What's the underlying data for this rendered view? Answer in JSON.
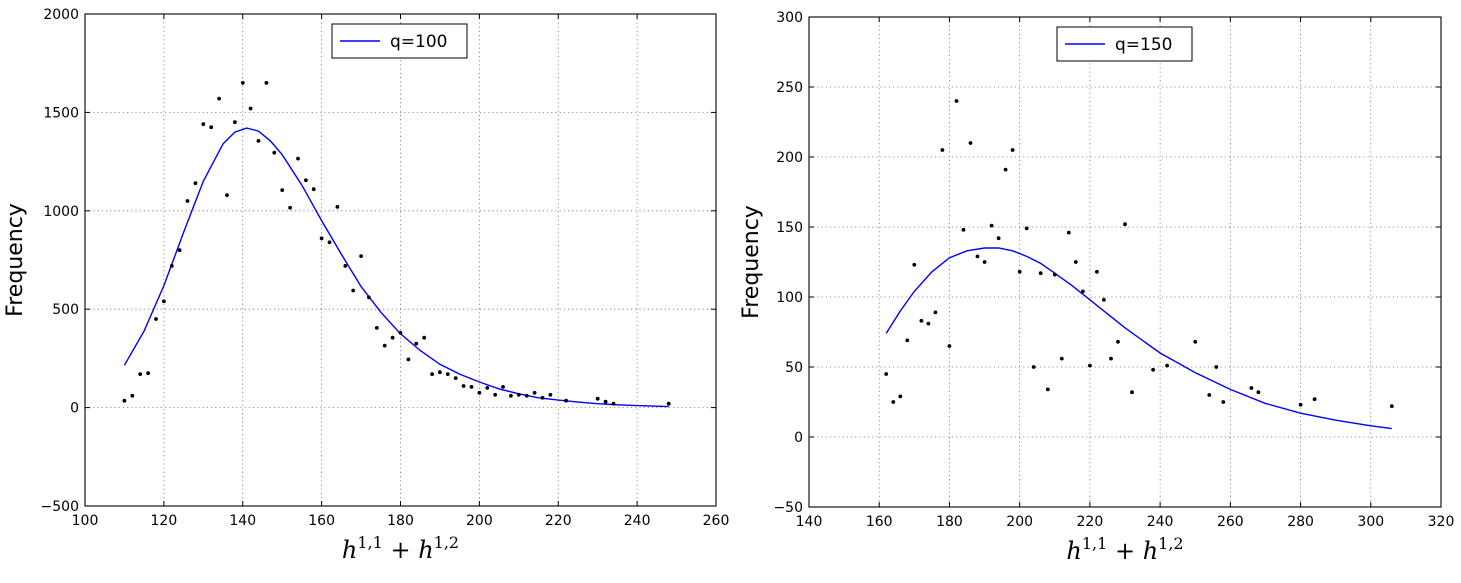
{
  "chart_data": [
    {
      "type": "scatter",
      "xlabel": "h^{1,1} + h^{1,2}",
      "ylabel": "Frequency",
      "xlim": [
        100,
        260
      ],
      "ylim": [
        -500,
        2000
      ],
      "xticks": [
        100,
        120,
        140,
        160,
        180,
        200,
        220,
        240,
        260
      ],
      "yticks": [
        -500,
        0,
        500,
        1000,
        1500,
        2000
      ],
      "grid": true,
      "legend_position": "top-center",
      "line_color": "#0000ff",
      "point_color": "#000000",
      "series": [
        {
          "name": "q=100",
          "kind": "line",
          "x": [
            110,
            115,
            120,
            125,
            130,
            135,
            138,
            141,
            144,
            147,
            150,
            155,
            160,
            165,
            170,
            175,
            180,
            185,
            190,
            195,
            200,
            205,
            210,
            215,
            220,
            225,
            230,
            235,
            240,
            248
          ],
          "y": [
            215,
            390,
            620,
            890,
            1150,
            1340,
            1400,
            1420,
            1405,
            1355,
            1285,
            1130,
            950,
            780,
            615,
            485,
            375,
            290,
            220,
            170,
            130,
            95,
            70,
            50,
            38,
            28,
            20,
            14,
            10,
            5
          ]
        },
        {
          "name": "",
          "kind": "points",
          "x": [
            110,
            112,
            114,
            116,
            118,
            120,
            122,
            124,
            126,
            128,
            130,
            132,
            134,
            136,
            138,
            140,
            142,
            144,
            146,
            148,
            150,
            152,
            154,
            156,
            158,
            160,
            162,
            164,
            166,
            168,
            170,
            172,
            174,
            176,
            178,
            180,
            182,
            184,
            186,
            188,
            190,
            192,
            194,
            196,
            198,
            200,
            202,
            204,
            206,
            208,
            210,
            212,
            214,
            216,
            218,
            222,
            230,
            232,
            234,
            248
          ],
          "y": [
            35,
            60,
            170,
            175,
            450,
            540,
            720,
            800,
            1050,
            1140,
            1440,
            1425,
            1570,
            1080,
            1450,
            1650,
            1520,
            1355,
            1650,
            1295,
            1105,
            1015,
            1265,
            1155,
            1110,
            860,
            840,
            1020,
            720,
            595,
            770,
            560,
            405,
            315,
            355,
            380,
            245,
            325,
            355,
            170,
            180,
            170,
            150,
            110,
            105,
            75,
            100,
            65,
            105,
            60,
            65,
            60,
            75,
            50,
            65,
            35,
            45,
            30,
            20,
            20
          ]
        }
      ]
    },
    {
      "type": "scatter",
      "xlabel": "h^{1,1} + h^{1,2}",
      "ylabel": "Frequency",
      "xlim": [
        140,
        320
      ],
      "ylim": [
        -50,
        300
      ],
      "xticks": [
        140,
        160,
        180,
        200,
        220,
        240,
        260,
        280,
        300,
        320
      ],
      "yticks": [
        -50,
        0,
        50,
        100,
        150,
        200,
        250,
        300
      ],
      "grid": true,
      "legend_position": "top-center",
      "line_color": "#0000ff",
      "point_color": "#000000",
      "series": [
        {
          "name": "q=150",
          "kind": "line",
          "x": [
            162,
            166,
            170,
            175,
            180,
            185,
            190,
            194,
            198,
            202,
            206,
            210,
            215,
            220,
            225,
            230,
            240,
            250,
            260,
            270,
            280,
            290,
            300,
            306
          ],
          "y": [
            74,
            90,
            104,
            118,
            128,
            133,
            135,
            135,
            133,
            129,
            124,
            117,
            108,
            98,
            88,
            78,
            60,
            46,
            34,
            24,
            17,
            12,
            8,
            6
          ]
        },
        {
          "name": "",
          "kind": "points",
          "x": [
            162,
            164,
            166,
            168,
            170,
            172,
            174,
            176,
            178,
            180,
            182,
            184,
            186,
            188,
            190,
            192,
            194,
            196,
            198,
            200,
            202,
            204,
            206,
            208,
            210,
            212,
            214,
            216,
            218,
            220,
            222,
            224,
            226,
            228,
            230,
            232,
            238,
            242,
            250,
            254,
            256,
            258,
            266,
            268,
            280,
            284,
            306
          ],
          "y": [
            45,
            25,
            29,
            69,
            123,
            83,
            81,
            89,
            205,
            65,
            240,
            148,
            210,
            129,
            125,
            151,
            142,
            191,
            205,
            118,
            149,
            50,
            117,
            34,
            116,
            56,
            146,
            125,
            104,
            51,
            118,
            98,
            56,
            68,
            152,
            32,
            48,
            51,
            68,
            30,
            50,
            25,
            35,
            32,
            23,
            27,
            22
          ]
        }
      ]
    }
  ]
}
